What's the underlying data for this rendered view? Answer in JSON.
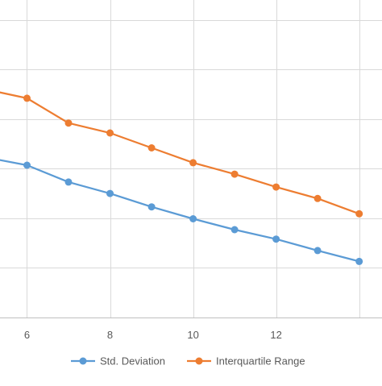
{
  "chart_data": {
    "type": "line",
    "title": "",
    "xlabel": "",
    "ylabel": "",
    "xlim": [
      5.35,
      14.55
    ],
    "ylim": [
      0,
      6.4
    ],
    "x_ticks": [
      6,
      8,
      10,
      12
    ],
    "x_tick_labels": [
      "6",
      "8",
      "10",
      "12"
    ],
    "x_gridlines": [
      6,
      8,
      10,
      12,
      14
    ],
    "y_gridlines": [
      1,
      2,
      3,
      4,
      5,
      6
    ],
    "grid": true,
    "legend_position": "bottom",
    "series": [
      {
        "name": "Std. Deviation",
        "color": "#5B9BD5",
        "points": [
          {
            "x": 5,
            "y": 3.23
          },
          {
            "x": 6,
            "y": 3.07
          },
          {
            "x": 7,
            "y": 2.73
          },
          {
            "x": 8,
            "y": 2.5
          },
          {
            "x": 9,
            "y": 2.23
          },
          {
            "x": 10,
            "y": 1.99
          },
          {
            "x": 11,
            "y": 1.77
          },
          {
            "x": 12,
            "y": 1.58
          },
          {
            "x": 13,
            "y": 1.35
          },
          {
            "x": 14,
            "y": 1.13
          }
        ]
      },
      {
        "name": "Interquartile Range",
        "color": "#ED7D31",
        "points": [
          {
            "x": 5,
            "y": 4.6
          },
          {
            "x": 6,
            "y": 4.42
          },
          {
            "x": 7,
            "y": 3.92
          },
          {
            "x": 8,
            "y": 3.72
          },
          {
            "x": 9,
            "y": 3.42
          },
          {
            "x": 10,
            "y": 3.12
          },
          {
            "x": 11,
            "y": 2.89
          },
          {
            "x": 12,
            "y": 2.63
          },
          {
            "x": 13,
            "y": 2.4
          },
          {
            "x": 14,
            "y": 2.09
          }
        ]
      }
    ]
  }
}
